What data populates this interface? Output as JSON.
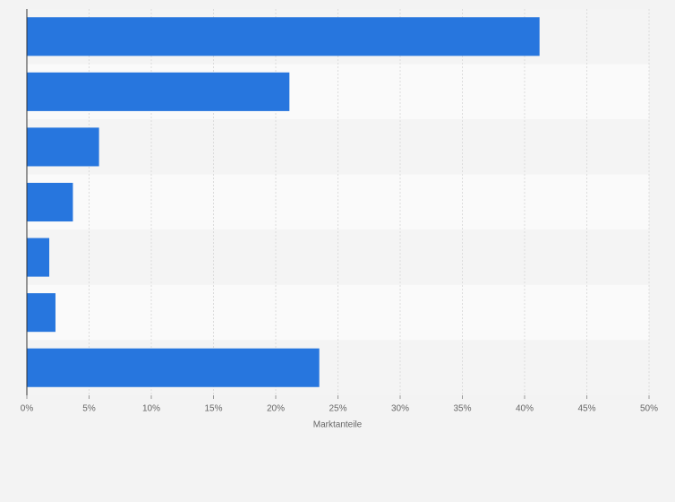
{
  "chart_data": {
    "type": "barh",
    "categories": [
      null,
      null,
      null,
      null,
      null,
      null,
      null
    ],
    "values": [
      41.2,
      21.1,
      5.8,
      3.7,
      1.8,
      2.3,
      23.5
    ],
    "color": "#2776de",
    "xlabel": "Marktanteile",
    "xlim": [
      0,
      50
    ],
    "xticks": [
      {
        "value": 0,
        "label": "0%"
      },
      {
        "value": 5,
        "label": "5%"
      },
      {
        "value": 10,
        "label": "10%"
      },
      {
        "value": 15,
        "label": "15%"
      },
      {
        "value": 20,
        "label": "20%"
      },
      {
        "value": 25,
        "label": "25%"
      },
      {
        "value": 30,
        "label": "30%"
      },
      {
        "value": 35,
        "label": "35%"
      },
      {
        "value": 40,
        "label": "40%"
      },
      {
        "value": 45,
        "label": "45%"
      },
      {
        "value": 50,
        "label": "50%"
      }
    ],
    "grid": true
  }
}
